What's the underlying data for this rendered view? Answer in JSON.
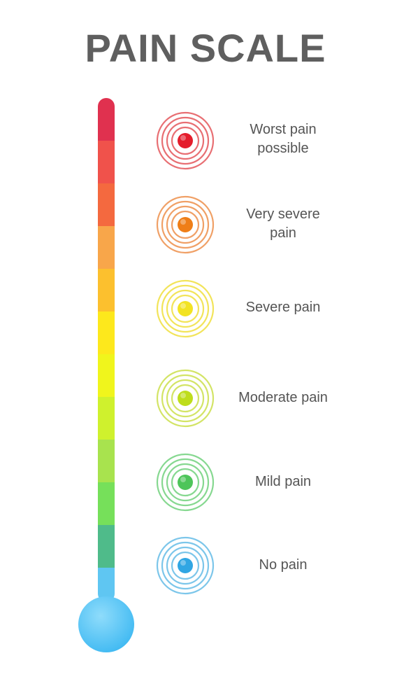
{
  "title": "PAIN SCALE",
  "thermometer": {
    "segment_colors": [
      "#e0314f",
      "#f0524b",
      "#f4693f",
      "#f8a64a",
      "#fcc02e",
      "#fde81c",
      "#f0f51c",
      "#cff12d",
      "#a8e34e",
      "#76e05a",
      "#4fbb8a",
      "#5fc6f2"
    ],
    "bulb_color": "#5cc8f6"
  },
  "levels": [
    {
      "label": "Worst pain\npossible",
      "icon": "target-rings-icon",
      "ring_color": "#e86f73",
      "dot_color": "#e41d2c"
    },
    {
      "label": "Very severe\npain",
      "icon": "target-rings-icon",
      "ring_color": "#f0a066",
      "dot_color": "#ef7e17"
    },
    {
      "label": "Severe  pain",
      "icon": "target-rings-icon",
      "ring_color": "#f2e45a",
      "dot_color": "#f2e323"
    },
    {
      "label": "Moderate pain",
      "icon": "target-rings-icon",
      "ring_color": "#d3e466",
      "dot_color": "#bedd1c"
    },
    {
      "label": "Mild pain",
      "icon": "target-rings-icon",
      "ring_color": "#86d890",
      "dot_color": "#4ec55a"
    },
    {
      "label": "No pain",
      "icon": "target-rings-icon",
      "ring_color": "#7cc6ea",
      "dot_color": "#30a6e3"
    }
  ]
}
